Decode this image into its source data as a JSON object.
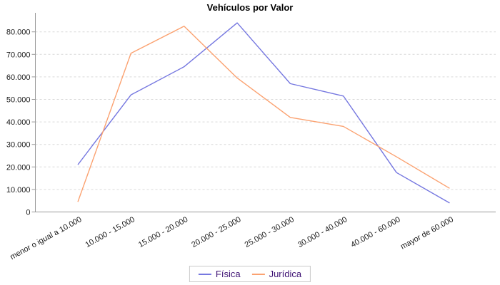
{
  "chart_data": {
    "type": "line",
    "title": "Vehículos por Valor",
    "categories": [
      "menor o igual a 10.000",
      "10.000 - 15.000",
      "15.000 - 20.000",
      "20.000 - 25.000",
      "25.000 - 30.000",
      "30.000 - 40.000",
      "40.000 - 60.000",
      "mayor de 60.000"
    ],
    "series": [
      {
        "name": "Física",
        "color": "#7678e0",
        "values": [
          21000,
          52000,
          64500,
          84000,
          57000,
          51500,
          17500,
          4000
        ]
      },
      {
        "name": "Jurídica",
        "color": "#fba271",
        "values": [
          4500,
          70500,
          82500,
          59500,
          42000,
          38000,
          24500,
          10500
        ]
      }
    ],
    "y_axis": {
      "min": 0,
      "max": 87000,
      "tick_interval": 10000,
      "tick_labels": [
        "0",
        "10.000",
        "20.000",
        "30.000",
        "40.000",
        "50.000",
        "60.000",
        "70.000",
        "80.000"
      ]
    },
    "x_axis": {
      "label_rotation_deg": -29
    },
    "grid": "horizontal-dashed",
    "legend_position": "bottom-center",
    "colors": {
      "background": "#ffffff",
      "grid_line": "#d9d9d9",
      "axis_line": "#999999",
      "tick_text": "#1a1a1a",
      "legend_text": "#3d1173",
      "title_text": "#000000"
    }
  }
}
